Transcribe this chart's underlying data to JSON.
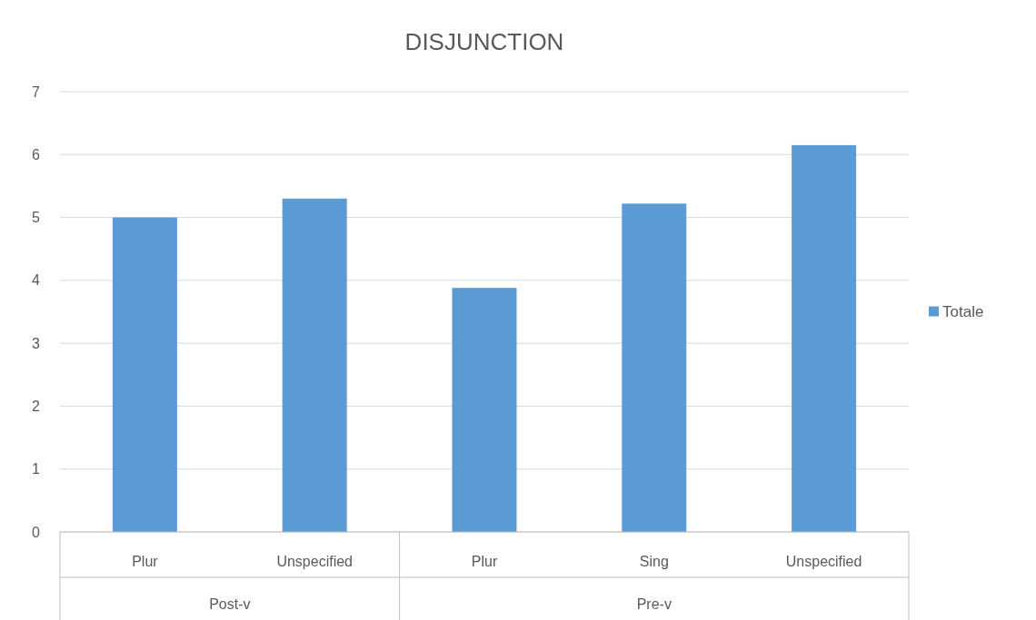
{
  "chart_data": {
    "type": "bar",
    "title": "DISJUNCTION",
    "categories": [
      "Plur",
      "Unspecified",
      "Plur",
      "Sing",
      "Unspecified"
    ],
    "series": [
      {
        "name": "Totale",
        "color": "#5b9bd5",
        "values": [
          5.0,
          5.3,
          3.88,
          5.22,
          6.15
        ]
      }
    ],
    "ylim": [
      0,
      7
    ],
    "yticks": [
      0,
      1,
      2,
      3,
      4,
      5,
      6,
      7
    ],
    "grid": "y",
    "legend": "right",
    "annotations": [
      "Post-v",
      "Pre-v"
    ]
  }
}
